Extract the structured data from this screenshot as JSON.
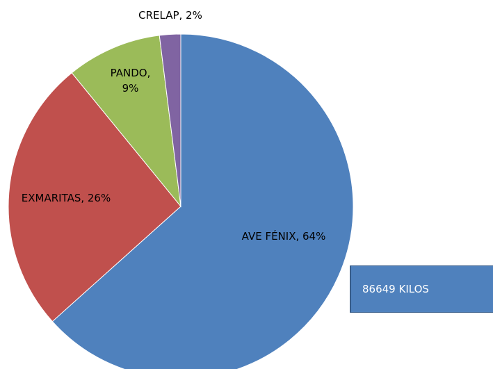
{
  "chart_data": {
    "type": "pie",
    "values": [
      64,
      26,
      9,
      2
    ],
    "value_labels": [
      "AVE FÉNIX, 64%",
      "EXMARITAS, 26%",
      "PANDO, 9%",
      "CRELAP, 2%"
    ],
    "colors": [
      "#4f81bd",
      "#c0504d",
      "#9bbb59",
      "#8064a2"
    ],
    "annotation": "86649 KILOS"
  }
}
